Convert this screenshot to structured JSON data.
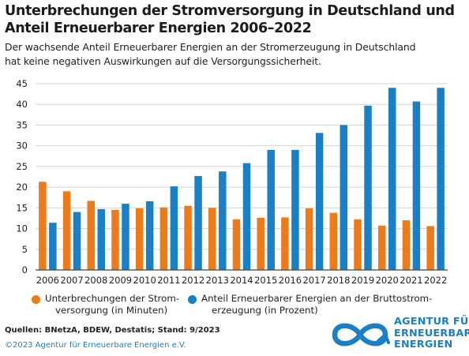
{
  "title_lines": [
    "Unterbrechungen der Stromversorgung in Deutschland und",
    "Anteil Erneuerbarer Energien 2006–2022"
  ],
  "subtitle_lines": [
    "Der wachsende Anteil Erneuerbarer Energien an der Stromerzeugung in Deutschland",
    "hat keine negativen Auswirkungen auf die Versorgungssicherheit."
  ],
  "chart_data": {
    "type": "bar",
    "categories": [
      "2006",
      "2007",
      "2008",
      "2009",
      "2010",
      "2011",
      "2012",
      "2013",
      "2014",
      "2015",
      "2016",
      "2017",
      "2018",
      "2019",
      "2020",
      "2021",
      "2022"
    ],
    "series": [
      {
        "name": "Unterbrechungen der Stromversorgung (in Minuten)",
        "color": "#ee7b19",
        "values": [
          21.3,
          19.0,
          16.7,
          14.5,
          14.9,
          15.1,
          15.5,
          15.0,
          12.2,
          12.6,
          12.7,
          14.9,
          13.8,
          12.2,
          10.7,
          12.0,
          10.6
        ]
      },
      {
        "name": "Anteil Erneuerbarer Energien an der Bruttostromerzeugung (in Prozent)",
        "color": "#1a7fc4",
        "values": [
          11.4,
          14.0,
          14.7,
          16.0,
          16.6,
          20.2,
          22.7,
          23.8,
          25.8,
          29.0,
          29.0,
          33.1,
          35.0,
          39.7,
          44.0,
          40.7,
          44.0
        ]
      }
    ],
    "yticks": [
      0,
      5,
      10,
      15,
      20,
      25,
      30,
      35,
      40,
      45
    ],
    "ylim": [
      0,
      45
    ],
    "grid": true,
    "legend_position": "bottom"
  },
  "legend": {
    "item1_line1": "Unterbrechungen der Strom-",
    "item1_line2": "versorgung  (in Minuten)",
    "item2_line1": "Anteil Erneuerbarer Energien an der Bruttostrom-",
    "item2_line2": "erzeugung (in Prozent)"
  },
  "sources": "Quellen: BNetzA, BDEW, Destatis; Stand: 9/2023",
  "copyright": "©2023 Agentur für Erneuerbare Energien e.V.",
  "logo": {
    "line1": "AGENTUR FÜR",
    "line2": "ERNEUERBARE",
    "line3": "ENERGIEN",
    "color": "#1a7fc4"
  }
}
